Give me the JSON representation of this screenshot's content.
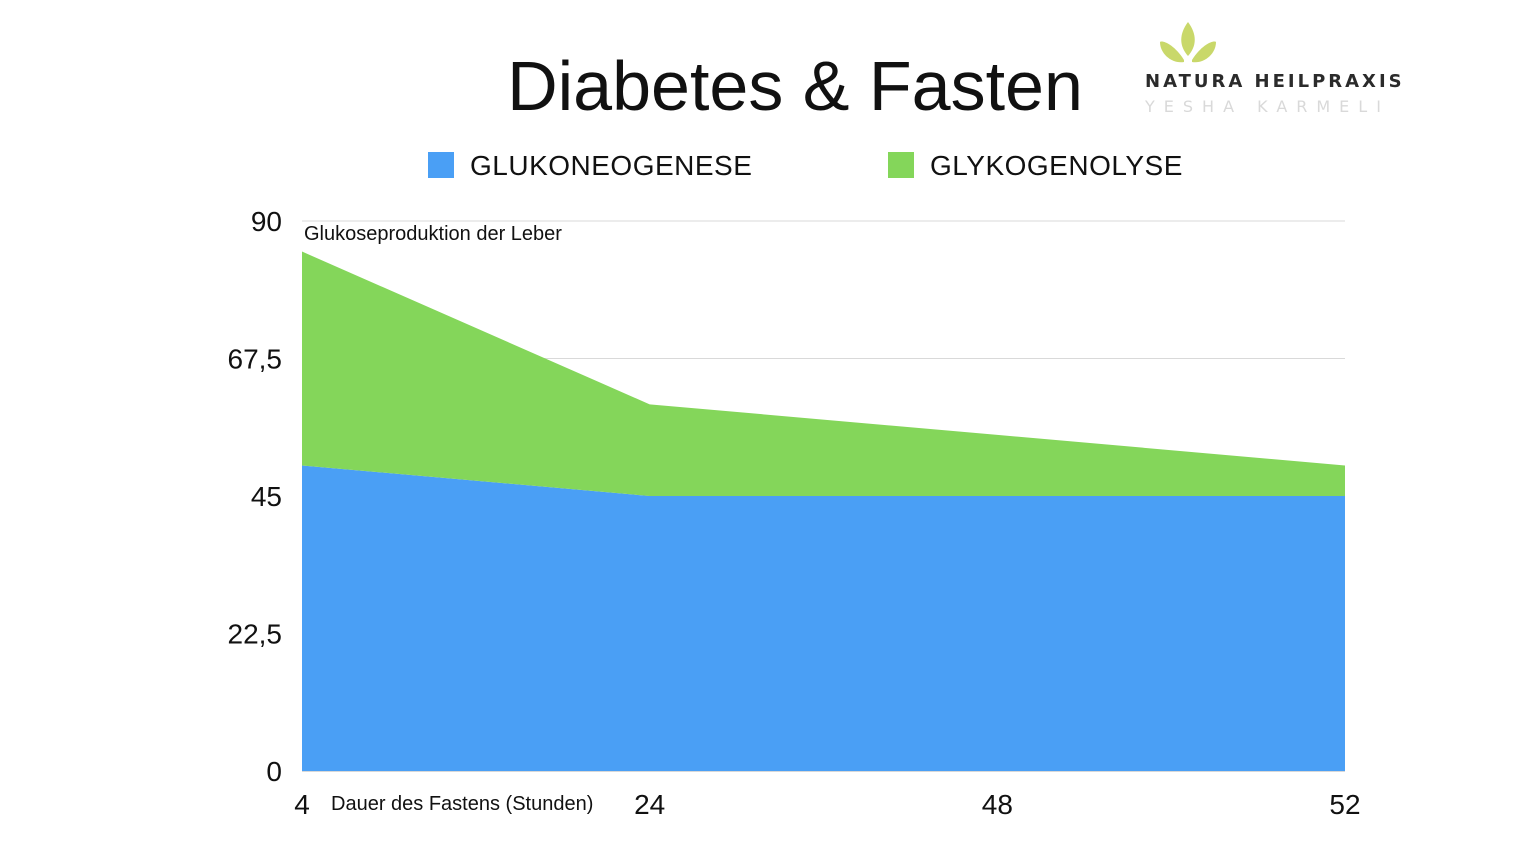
{
  "colors": {
    "gluconeogenesis": "#4a9ff5",
    "glycogenolysis": "#84d65a",
    "grid": "#d9d9d9",
    "logo_leaf": "#c9d86a"
  },
  "logo": {
    "brand": "NATURA HEILPRAXIS",
    "owner": "YESHA KARMELI",
    "icon": "leaf-icon"
  },
  "chart_data": {
    "type": "area",
    "stacked": true,
    "title": "Diabetes & Fasten",
    "ylabel": "Glukoseproduktion der Leber",
    "xlabel": "Dauer des Fastens (Stunden)",
    "categories": [
      "4",
      "24",
      "48",
      "52"
    ],
    "series": [
      {
        "name": "GLUKONEOGENESE",
        "values": [
          50,
          45,
          45,
          45
        ]
      },
      {
        "name": "GLYKOGENOLYSE",
        "values": [
          35,
          15,
          10,
          5
        ]
      }
    ],
    "ylim": [
      0,
      90
    ],
    "yticks": [
      "0",
      "22,5",
      "45",
      "67,5",
      "90"
    ],
    "ytick_values": [
      0,
      22.5,
      45,
      67.5,
      90
    ],
    "grid": true,
    "legend": "top"
  }
}
